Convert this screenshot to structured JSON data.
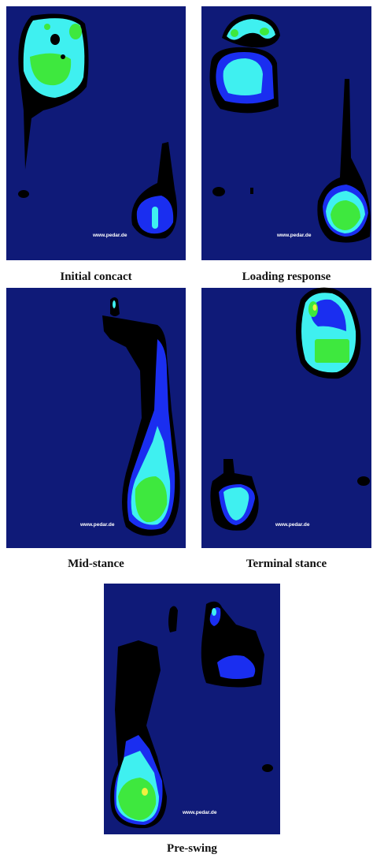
{
  "panels": [
    {
      "caption": "Initial concact",
      "watermark": "www.pedar.de"
    },
    {
      "caption": "Loading response",
      "watermark": "www.pedar.de"
    },
    {
      "caption": "Mid-stance",
      "watermark": "www.pedar.de"
    },
    {
      "caption": "Terminal stance",
      "watermark": "www.pedar.de"
    },
    {
      "caption": "Pre-swing",
      "watermark": "www.pedar.de"
    }
  ]
}
